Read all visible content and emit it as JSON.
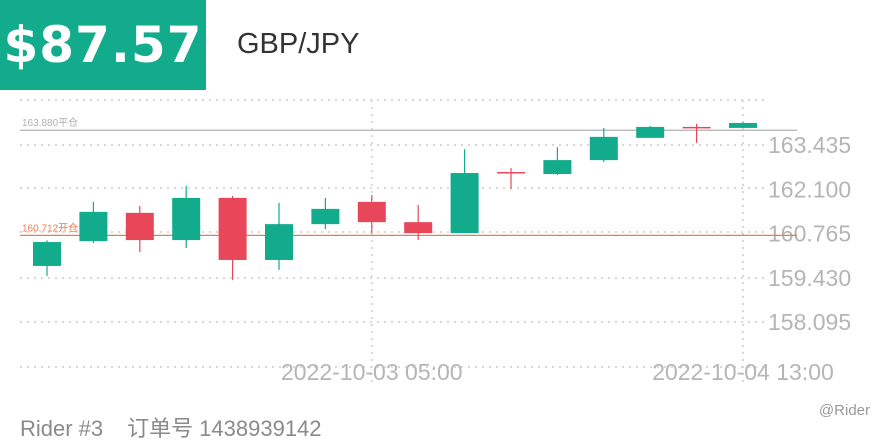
{
  "header": {
    "price": "$87.57",
    "pair": "GBP/JPY"
  },
  "footer": {
    "rider": "Rider #3",
    "order_label": "订单号",
    "order_number": "1438939142",
    "watermark": "@Rider"
  },
  "colors": {
    "up": "#12ab8c",
    "down": "#e8475a",
    "open_line": "#f07a4a",
    "close_line": "#b0b0b0",
    "badge": "#12ab8c"
  },
  "chart_data": {
    "type": "candlestick",
    "y_ticks": [
      "163.435",
      "162.100",
      "160.765",
      "159.430",
      "158.095"
    ],
    "ylim": [
      157.5,
      164.9
    ],
    "x_tick_labels": [
      {
        "label": "2022-10-03 05:00",
        "index": 7
      },
      {
        "label": "2022-10-04 13:00",
        "index": 15
      }
    ],
    "reference_lines": [
      {
        "value": 163.88,
        "label": "163.880平仓",
        "kind": "close"
      },
      {
        "value": 160.712,
        "label": "160.712开仓",
        "kind": "open"
      }
    ],
    "candles": [
      {
        "open": 159.79,
        "close": 160.51,
        "high": 160.56,
        "low": 159.49
      },
      {
        "open": 160.54,
        "close": 161.42,
        "high": 161.72,
        "low": 160.48
      },
      {
        "open": 161.39,
        "close": 160.57,
        "high": 161.6,
        "low": 160.21
      },
      {
        "open": 160.57,
        "close": 161.84,
        "high": 162.2,
        "low": 160.33
      },
      {
        "open": 161.84,
        "close": 159.97,
        "high": 161.9,
        "low": 159.37
      },
      {
        "open": 159.97,
        "close": 161.05,
        "high": 161.69,
        "low": 159.67
      },
      {
        "open": 161.05,
        "close": 161.51,
        "high": 161.84,
        "low": 160.9
      },
      {
        "open": 161.72,
        "close": 161.11,
        "high": 161.93,
        "low": 160.78
      },
      {
        "open": 161.11,
        "close": 160.78,
        "high": 161.63,
        "low": 160.57
      },
      {
        "open": 160.78,
        "close": 162.59,
        "high": 163.31,
        "low": 160.78
      },
      {
        "open": 162.62,
        "close": 162.59,
        "high": 162.74,
        "low": 162.11
      },
      {
        "open": 162.56,
        "close": 162.98,
        "high": 163.37,
        "low": 162.53
      },
      {
        "open": 162.98,
        "close": 163.68,
        "high": 163.95,
        "low": 162.92
      },
      {
        "open": 163.65,
        "close": 163.98,
        "high": 164.01,
        "low": 163.65
      },
      {
        "open": 163.98,
        "close": 163.96,
        "high": 164.07,
        "low": 163.5
      },
      {
        "open": 163.95,
        "close": 164.1,
        "high": 164.12,
        "low": 163.95
      }
    ]
  }
}
